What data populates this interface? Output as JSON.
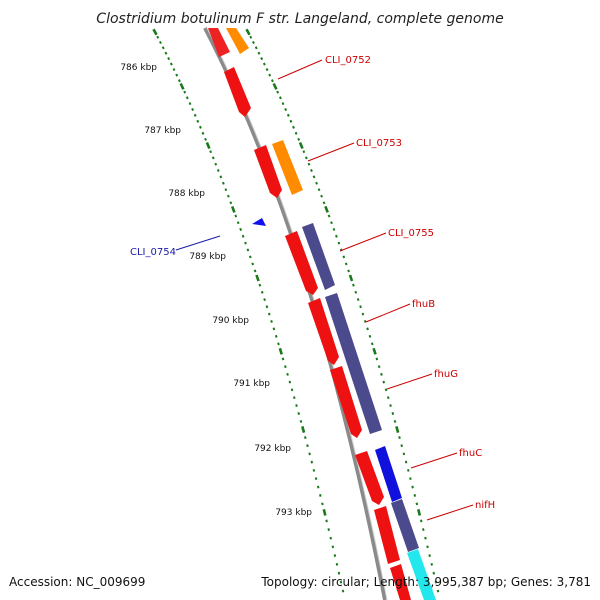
{
  "title": "Clostridium botulinum F str. Langeland, complete genome",
  "footer": {
    "accession": "Accession: NC_009699",
    "topology": "Topology: circular; Length: 3,995,387 bp; Genes: 3,781"
  },
  "scale_ticks": [
    "786 kbp",
    "787 kbp",
    "788 kbp",
    "789 kbp",
    "790 kbp",
    "791 kbp",
    "792 kbp",
    "793 kbp"
  ],
  "gene_labels": [
    {
      "name": "CLI_0752",
      "color": "#cc0000"
    },
    {
      "name": "CLI_0753",
      "color": "#cc0000"
    },
    {
      "name": "CLI_0755",
      "color": "#cc0000"
    },
    {
      "name": "fhuB",
      "color": "#cc0000"
    },
    {
      "name": "fhuG",
      "color": "#cc0000"
    },
    {
      "name": "fhuC",
      "color": "#cc0000"
    },
    {
      "name": "nifH",
      "color": "#cc0000"
    },
    {
      "name": "CLI_0754",
      "color": "#1a1aa8"
    }
  ],
  "colors": {
    "backbone": "#8a8a8a",
    "cds": "#ee1111",
    "orange": "#ff8c00",
    "purple": "#4b4a8c",
    "blue": "#1111dd",
    "cyan": "#22e8ee",
    "ticks": "#1a7a1a"
  }
}
